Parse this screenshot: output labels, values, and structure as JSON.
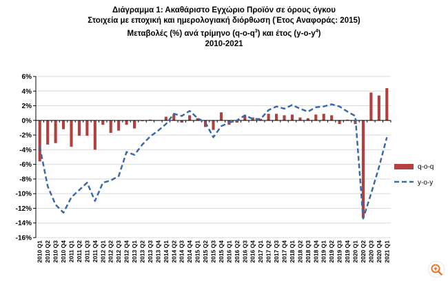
{
  "titles": {
    "line1": "Διάγραμμα 1: Ακαθάριστο Εγχώριο Προϊόν σε όρους όγκου",
    "line2": "Στοιχεία με εποχική και ημερολογιακή διόρθωση (Έτος Αναφοράς: 2015)",
    "line3_pre": "Μεταβολές (%) ανά τρίμηνο (q-o-q",
    "line3_sup1": "3",
    "line3_mid": ") και έτος (y-o-y",
    "line3_sup2": "4",
    "line3_post": ")",
    "line4": "2010-2021"
  },
  "colors": {
    "bars": "#b2403e",
    "line": "#3a6aa7",
    "grid": "#d9d9d9",
    "axis": "#000000"
  },
  "chart_data": {
    "type": "bar",
    "ylim": [
      -16,
      6
    ],
    "ytick_step": 2,
    "ytick_format": "percent",
    "grid": true,
    "legend_position": "right",
    "categories": [
      "2010 Q1",
      "2010 Q2",
      "2010 Q3",
      "2010 Q4",
      "2011 Q1",
      "2011 Q2",
      "2011 Q3",
      "2011 Q4",
      "2012 Q1",
      "2012 Q2",
      "2012 Q3",
      "2012 Q4",
      "2013 Q1",
      "2013 Q2",
      "2013 Q3",
      "2013 Q4",
      "2014 Q1",
      "2014 Q2",
      "2014 Q3",
      "2014 Q4",
      "2015 Q1",
      "2015 Q2",
      "2015 Q3",
      "2015 Q4",
      "2016 Q1",
      "2016 Q2",
      "2016 Q3",
      "2016 Q4",
      "2017 Q1",
      "2017 Q2",
      "2017 Q3",
      "2017 Q4",
      "2018 Q1",
      "2018 Q2",
      "2018 Q3",
      "2018 Q4",
      "2019 Q1",
      "2019 Q2",
      "2019 Q3",
      "2019 Q4",
      "2020 Q1",
      "2020 Q2",
      "2020 Q3",
      "2020 Q4",
      "2021 Q1"
    ],
    "series": [
      {
        "name": "q-o-q",
        "type": "bar",
        "values": [
          -5.6,
          -3.3,
          -3.1,
          -1.2,
          -3.6,
          -2.1,
          -2.1,
          -4.0,
          -0.6,
          -1.7,
          -1.4,
          -0.6,
          -1.1,
          -0.1,
          0.1,
          0.0,
          0.5,
          0.8,
          -0.3,
          0.7,
          0.3,
          -0.9,
          -1.3,
          1.1,
          -0.6,
          -0.3,
          0.7,
          0.4,
          0.2,
          0.9,
          0.9,
          0.7,
          0.8,
          0.4,
          0.3,
          0.8,
          0.9,
          0.7,
          -0.5,
          0.1,
          -0.5,
          -13.3,
          3.8,
          3.4,
          4.4
        ]
      },
      {
        "name": "y-o-y",
        "type": "line",
        "values": [
          -3.6,
          -9.0,
          -11.5,
          -12.6,
          -10.5,
          -9.5,
          -8.5,
          -11.0,
          -8.5,
          -8.2,
          -7.6,
          -4.3,
          -4.7,
          -3.3,
          -2.2,
          -1.4,
          -0.5,
          0.9,
          0.6,
          1.3,
          0.3,
          -0.3,
          -2.3,
          -0.8,
          -0.3,
          0.0,
          0.7,
          0.2,
          0.2,
          1.4,
          1.9,
          1.6,
          2.1,
          1.6,
          1.2,
          1.8,
          1.9,
          2.2,
          1.9,
          1.2,
          0.6,
          -13.4,
          -10.0,
          -6.4,
          -2.3
        ]
      }
    ]
  }
}
